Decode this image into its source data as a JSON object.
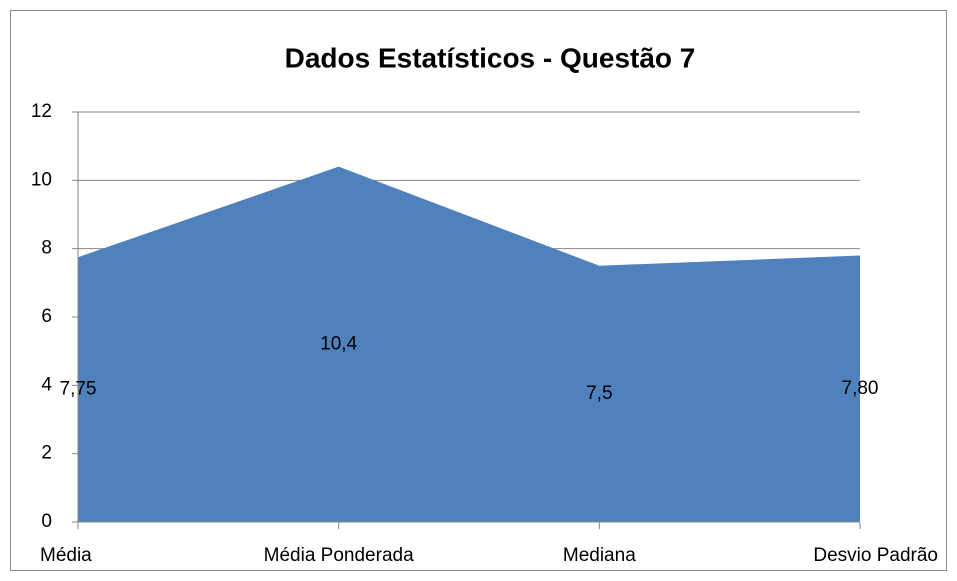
{
  "chart_data": {
    "type": "area",
    "title": "Dados Estatísticos - Questão 7",
    "categories": [
      "Média",
      "Média Ponderada",
      "Mediana",
      "Desvio Padrão"
    ],
    "values": [
      7.75,
      10.4,
      7.5,
      7.8
    ],
    "value_labels": [
      "7,75",
      "10,4",
      "7,5",
      "7,80"
    ],
    "color": "#4f81bd",
    "ylim": [
      0,
      12
    ],
    "yticks": [
      0,
      2,
      4,
      6,
      8,
      10,
      12
    ],
    "grid": true
  }
}
